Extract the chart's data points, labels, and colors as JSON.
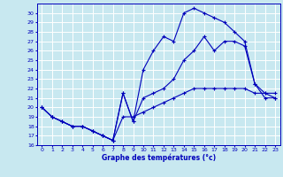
{
  "title": "Graphe des températures (°c)",
  "bg_color": "#c8e8f0",
  "grid_color": "#ffffff",
  "line_color": "#0000bb",
  "xlim": [
    -0.5,
    23.5
  ],
  "ylim": [
    16,
    31
  ],
  "xticks": [
    0,
    1,
    2,
    3,
    4,
    5,
    6,
    7,
    8,
    9,
    10,
    11,
    12,
    13,
    14,
    15,
    16,
    17,
    18,
    19,
    20,
    21,
    22,
    23
  ],
  "yticks": [
    16,
    17,
    18,
    19,
    20,
    21,
    22,
    23,
    24,
    25,
    26,
    27,
    28,
    29,
    30
  ],
  "line1_x": [
    0,
    1,
    2,
    3,
    4,
    5,
    6,
    7,
    8,
    9,
    10,
    11,
    12,
    13,
    14,
    15,
    16,
    17,
    18,
    19,
    20,
    21,
    22,
    23
  ],
  "line1_y": [
    20,
    19,
    18.5,
    18,
    18,
    17.5,
    17,
    16.5,
    19,
    19,
    19.5,
    20,
    20.5,
    21,
    21.5,
    22,
    22,
    22,
    22,
    22,
    22,
    21.5,
    21.5,
    21.5
  ],
  "line2_x": [
    0,
    1,
    2,
    3,
    4,
    5,
    6,
    7,
    8,
    9,
    10,
    11,
    12,
    13,
    14,
    15,
    16,
    17,
    18,
    19,
    20,
    21,
    22,
    23
  ],
  "line2_y": [
    20,
    19,
    18.5,
    18,
    18,
    17.5,
    17,
    16.5,
    21.5,
    18.5,
    24,
    26,
    27.5,
    27,
    30,
    30.5,
    30,
    29.5,
    29,
    28,
    27,
    22.5,
    21,
    21
  ],
  "line3_x": [
    0,
    1,
    2,
    3,
    4,
    5,
    6,
    7,
    8,
    9,
    10,
    11,
    12,
    13,
    14,
    15,
    16,
    17,
    18,
    19,
    20,
    21,
    22,
    23
  ],
  "line3_y": [
    20,
    19,
    18.5,
    18,
    18,
    17.5,
    17,
    16.5,
    21.5,
    18.5,
    21,
    21.5,
    22,
    23,
    25,
    26,
    27.5,
    26,
    27,
    27,
    26.5,
    22.5,
    21.5,
    21
  ]
}
